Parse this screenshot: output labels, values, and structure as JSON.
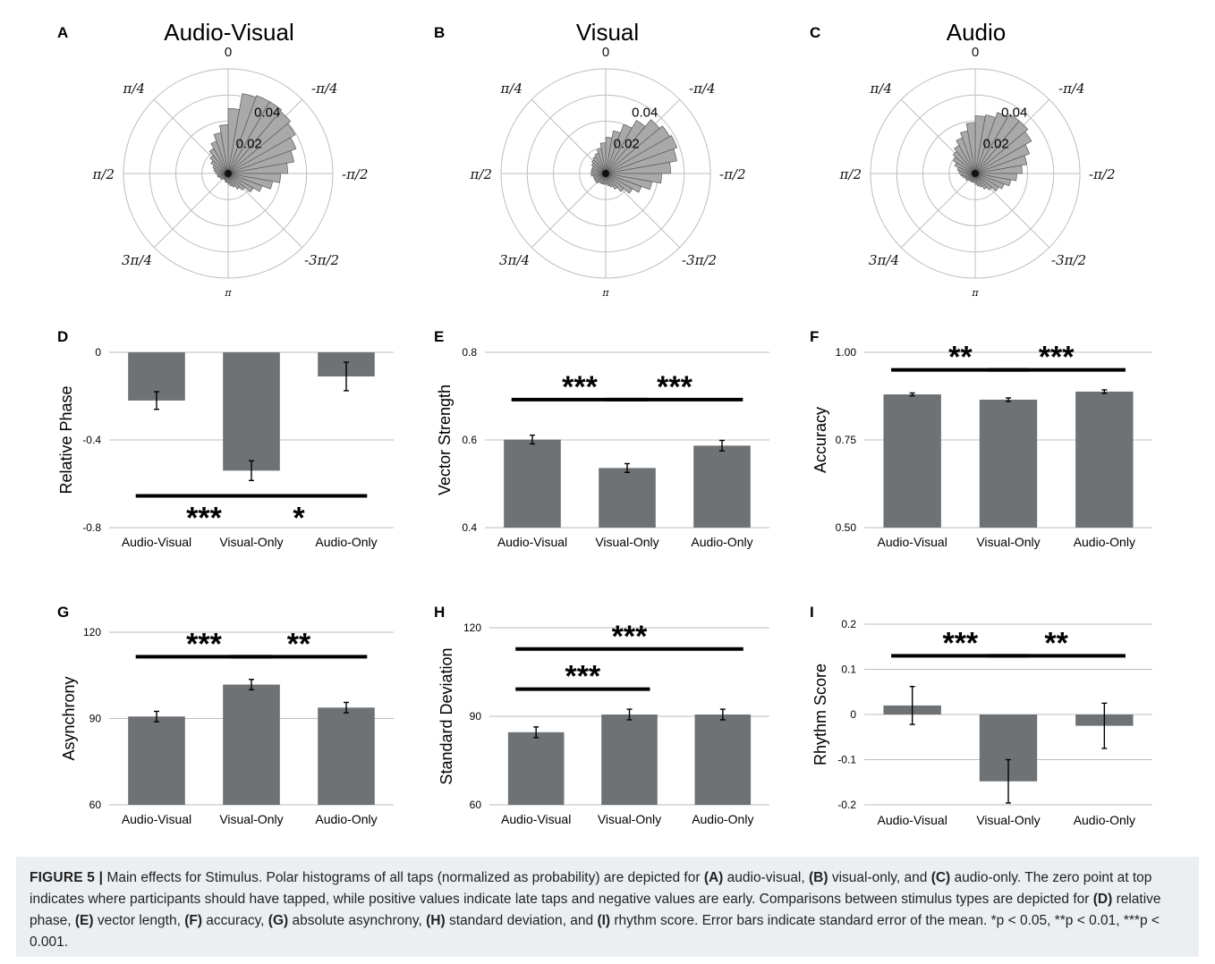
{
  "figure": {
    "polar": [
      {
        "panel": "A",
        "title": "Audio-Visual",
        "lengths": [
          0.036,
          0.045,
          0.046,
          0.046,
          0.045,
          0.043,
          0.04,
          0.037,
          0.033,
          0.029,
          0.025,
          0.02,
          0.016,
          0.012,
          0.01,
          0.008,
          0.007,
          0.006,
          0.005,
          0.005,
          0.004,
          0.004,
          0.004,
          0.005,
          0.005,
          0.006,
          0.006,
          0.007,
          0.008,
          0.009,
          0.011,
          0.013,
          0.016,
          0.019,
          0.023,
          0.027
        ]
      },
      {
        "panel": "B",
        "title": "Visual",
        "lengths": [
          0.02,
          0.024,
          0.029,
          0.034,
          0.039,
          0.041,
          0.042,
          0.04,
          0.036,
          0.031,
          0.026,
          0.021,
          0.017,
          0.013,
          0.01,
          0.008,
          0.007,
          0.006,
          0.006,
          0.006,
          0.006,
          0.006,
          0.007,
          0.007,
          0.007,
          0.007,
          0.008,
          0.008,
          0.008,
          0.008,
          0.009,
          0.01,
          0.011,
          0.012,
          0.014,
          0.017
        ]
      },
      {
        "panel": "C",
        "title": "Audio",
        "lengths": [
          0.032,
          0.033,
          0.036,
          0.038,
          0.038,
          0.036,
          0.032,
          0.029,
          0.026,
          0.023,
          0.02,
          0.017,
          0.015,
          0.012,
          0.01,
          0.008,
          0.007,
          0.006,
          0.005,
          0.005,
          0.005,
          0.005,
          0.005,
          0.006,
          0.006,
          0.007,
          0.008,
          0.009,
          0.01,
          0.012,
          0.014,
          0.016,
          0.018,
          0.021,
          0.024,
          0.028
        ]
      }
    ],
    "polar_angle_labels": {
      "top": "0",
      "top_right": "-π/4",
      "right": "-π/2",
      "bottom_right": "-3π/2",
      "bottom": "π",
      "bottom_left": "3π/4",
      "left": "π/2",
      "top_left": "π/4"
    },
    "polar_radial_labels": [
      "0.02",
      "0.04"
    ],
    "polar_radial_values": [
      0.02,
      0.04
    ],
    "polar_rmax": 0.058
  },
  "chart_data": [
    {
      "panel": "D",
      "type": "bar",
      "categories": [
        "Audio-Visual",
        "Visual-Only",
        "Audio-Only"
      ],
      "values": [
        -0.22,
        -0.54,
        -0.11
      ],
      "errors": [
        0.04,
        0.045,
        0.065
      ],
      "ylabel": "Relative Phase",
      "ylim": [
        -0.8,
        0
      ],
      "yticks": [
        0,
        -0.4,
        -0.8
      ],
      "yticklabels": [
        "0",
        "-0.4",
        "-0.8"
      ],
      "sig": [
        {
          "from": 0,
          "to": 1,
          "y": -0.655,
          "stars": "***",
          "star_pos": "below"
        },
        {
          "from": 1,
          "to": 2,
          "y": -0.655,
          "stars": "*",
          "star_pos": "below"
        }
      ]
    },
    {
      "panel": "E",
      "type": "bar",
      "categories": [
        "Audio-Visual",
        "Visual-Only",
        "Audio-Only"
      ],
      "values": [
        0.601,
        0.536,
        0.587
      ],
      "errors": [
        0.01,
        0.01,
        0.012
      ],
      "ylabel": "Vector Strength",
      "ylim": [
        0.4,
        0.8
      ],
      "yticks": [
        0.8,
        0.6,
        0.4
      ],
      "yticklabels": [
        "0.8",
        "0.6",
        "0.4"
      ],
      "sig": [
        {
          "from": 0,
          "to": 1,
          "y": 0.692,
          "stars": "***",
          "star_pos": "above"
        },
        {
          "from": 1,
          "to": 2,
          "y": 0.692,
          "stars": "***",
          "star_pos": "above"
        }
      ]
    },
    {
      "panel": "F",
      "type": "bar",
      "categories": [
        "Audio-Visual",
        "Visual-Only",
        "Audio-Only"
      ],
      "values": [
        0.88,
        0.865,
        0.888
      ],
      "errors": [
        0.004,
        0.005,
        0.005
      ],
      "ylabel": "Accuracy",
      "ylim": [
        0.5,
        1.0
      ],
      "yticks": [
        1.0,
        0.75,
        0.5
      ],
      "yticklabels": [
        "1.00",
        "0.75",
        "0.50"
      ],
      "sig": [
        {
          "from": 0,
          "to": 1,
          "y": 0.95,
          "stars": "**",
          "star_pos": "above"
        },
        {
          "from": 1,
          "to": 2,
          "y": 0.95,
          "stars": "***",
          "star_pos": "above"
        }
      ]
    },
    {
      "panel": "G",
      "type": "bar",
      "categories": [
        "Audio-Visual",
        "Visual-Only",
        "Audio-Only"
      ],
      "values": [
        90.7,
        101.8,
        93.8
      ],
      "errors": [
        1.8,
        1.8,
        1.8
      ],
      "ylabel": "Asynchrony",
      "ylim": [
        60,
        120
      ],
      "yticks": [
        120,
        90,
        60
      ],
      "yticklabels": [
        "120",
        "90",
        "60"
      ],
      "sig": [
        {
          "from": 0,
          "to": 1,
          "y": 111.5,
          "stars": "***",
          "star_pos": "above"
        },
        {
          "from": 1,
          "to": 2,
          "y": 111.5,
          "stars": "**",
          "star_pos": "above"
        }
      ]
    },
    {
      "panel": "H",
      "type": "bar",
      "categories": [
        "Audio-Visual",
        "Visual-Only",
        "Audio-Only"
      ],
      "values": [
        84.6,
        90.6,
        90.6
      ],
      "errors": [
        1.8,
        1.8,
        1.8
      ],
      "ylabel": "Standard Deviation",
      "ylim": [
        60,
        120
      ],
      "yticks": [
        120,
        90,
        60
      ],
      "yticklabels": [
        "120",
        "90",
        "60"
      ],
      "sig": [
        {
          "from": 0,
          "to": 1,
          "y": 99.2,
          "stars": "***",
          "star_pos": "above"
        },
        {
          "from": 0,
          "to": 2,
          "y": 112.8,
          "stars": "***",
          "star_pos": "above"
        }
      ]
    },
    {
      "panel": "I",
      "type": "bar",
      "categories": [
        "Audio-Visual",
        "Visual-Only",
        "Audio-Only"
      ],
      "values": [
        0.02,
        -0.148,
        -0.025
      ],
      "errors": [
        0.042,
        0.048,
        0.05
      ],
      "ylabel": "Rhythm Score",
      "ylim": [
        -0.2,
        0.2
      ],
      "yticks": [
        0.2,
        0.1,
        0,
        -0.1,
        -0.2
      ],
      "yticklabels": [
        "0.2",
        "0.1",
        "0",
        "-0.1",
        "-0.2"
      ],
      "sig": [
        {
          "from": 0,
          "to": 1,
          "y": 0.13,
          "stars": "***",
          "star_pos": "above"
        },
        {
          "from": 1,
          "to": 2,
          "y": 0.13,
          "stars": "**",
          "star_pos": "above"
        }
      ]
    }
  ],
  "caption": {
    "label": "FIGURE 5 |",
    "t1": " Main effects for Stimulus. Polar histograms of all taps (normalized as probability) are depicted for ",
    "A": "(A)",
    "t2": " audio-visual, ",
    "B": "(B)",
    "t3": " visual-only, and ",
    "C": "(C)",
    "t4": " audio-only. The zero point at top indicates where participants should have tapped, while positive values indicate late taps and negative values are early. Comparisons between stimulus types are depicted for ",
    "D": "(D)",
    "t5": " relative phase, ",
    "E": "(E)",
    "t6": " vector length, ",
    "F": "(F)",
    "t7": " accuracy, ",
    "G": "(G)",
    "t8": " absolute asynchrony, ",
    "H": "(H)",
    "t9": " standard deviation, and ",
    "I": "(I)",
    "t10": " rhythm score. Error bars indicate standard error of the mean. *p < 0.05, **p < 0.01, ***p < 0.001."
  },
  "colors": {
    "bar": "#6e7275",
    "polar_bar": "#a9a9a9",
    "grid": "#bdbdbd",
    "ink": "#000000",
    "caption_bg": "#eceff2"
  }
}
